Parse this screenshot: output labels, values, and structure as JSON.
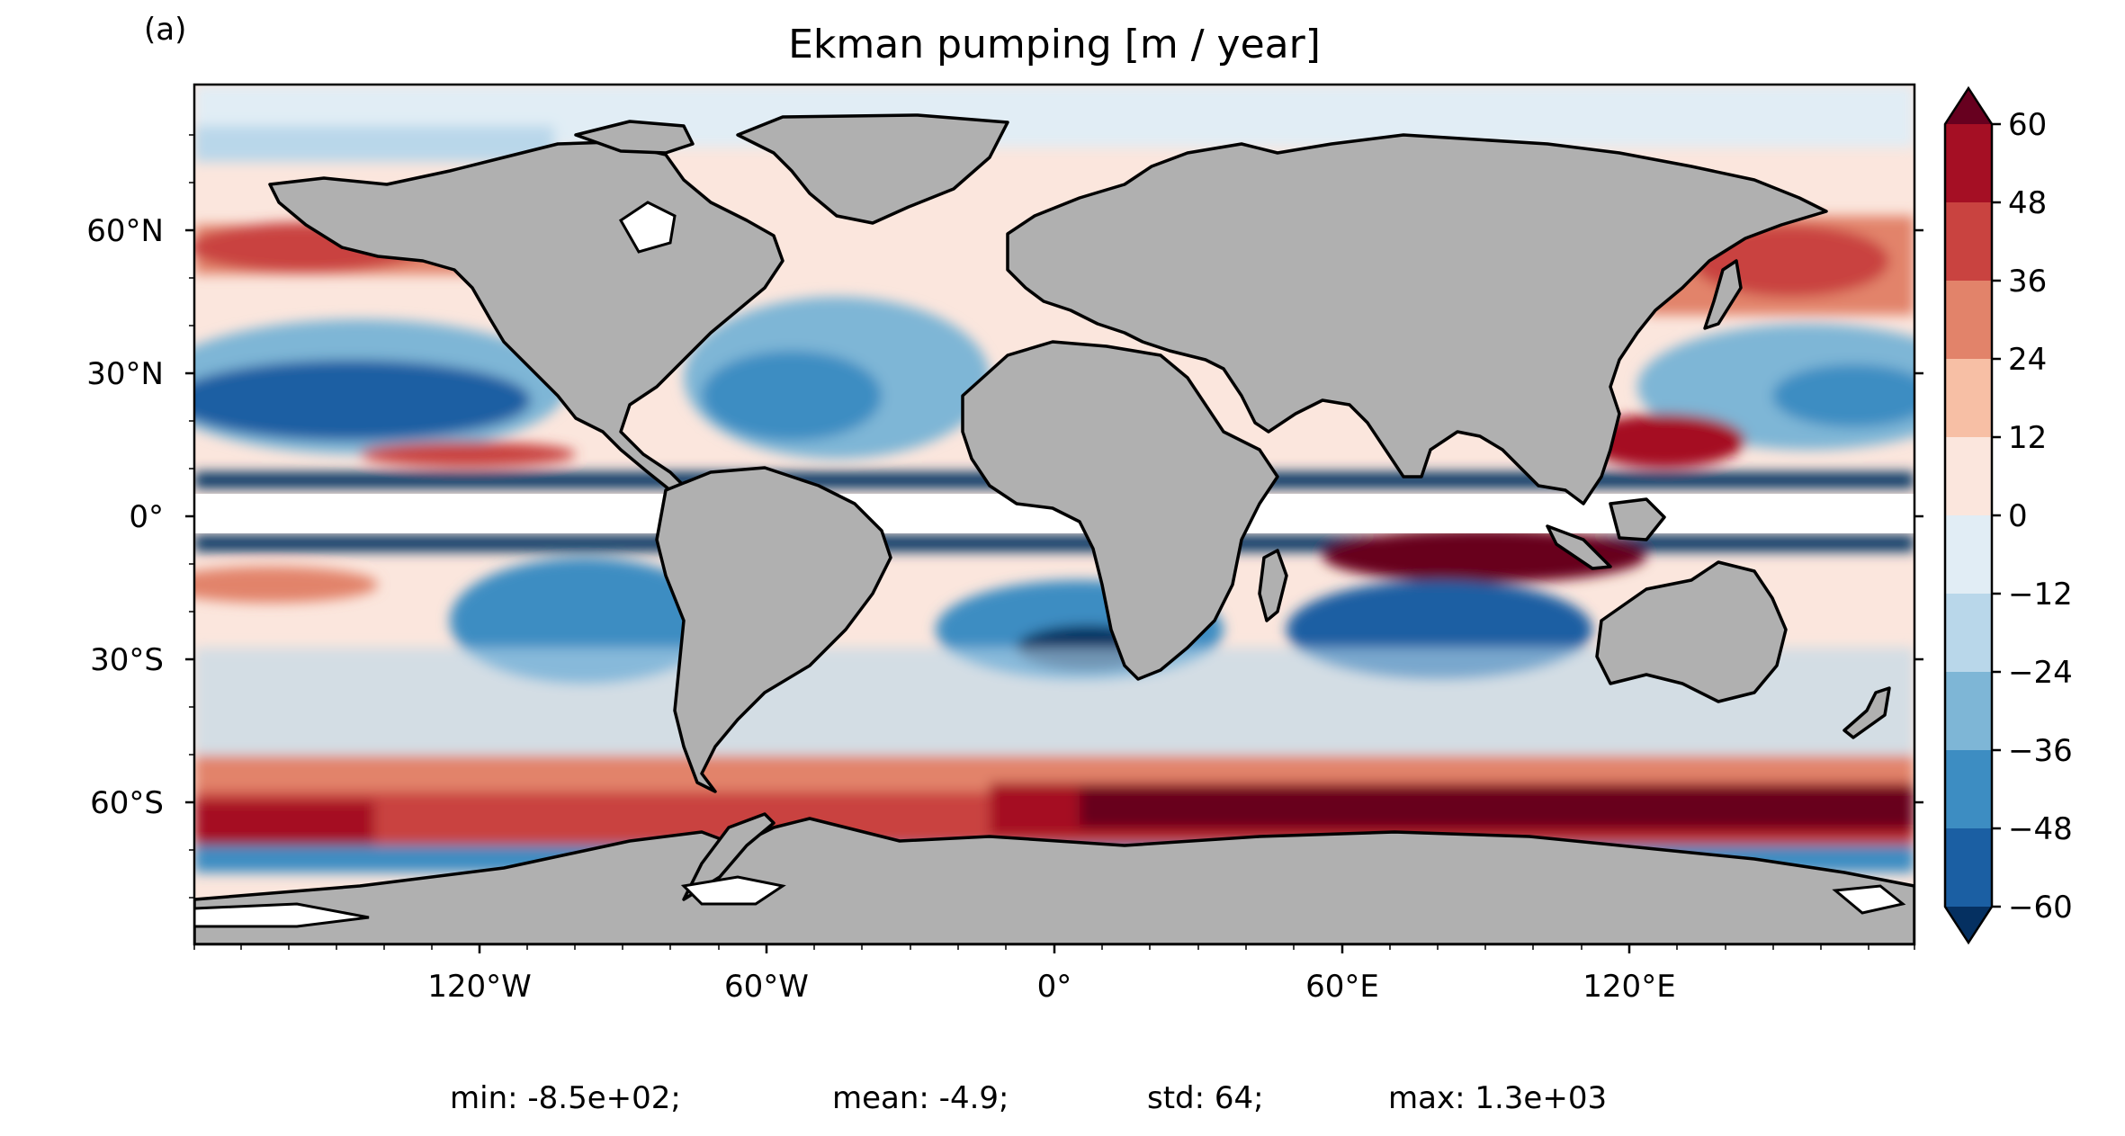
{
  "panel_label": "(a)",
  "title": "Ekman pumping [m / year]",
  "stats": {
    "min": "min: -8.5e+02;",
    "mean": "mean: -4.9;",
    "std": "std: 64;",
    "max": "max: 1.3e+03"
  },
  "colorbar": {
    "ticks": [
      "60",
      "48",
      "36",
      "24",
      "12",
      "0",
      "−12",
      "−24",
      "−36",
      "−48",
      "−60"
    ],
    "colors_top_to_bottom": [
      "#67001f",
      "#a50f24",
      "#c94340",
      "#e2836a",
      "#f7bfa5",
      "#fbe6dd",
      "#e1edf5",
      "#b9d7ea",
      "#7eb6d6",
      "#3d8dc2",
      "#1b5fa3",
      "#053061"
    ],
    "extend": "both"
  },
  "axes": {
    "y_ticks": [
      "60°N",
      "30°N",
      "0°",
      "30°S",
      "60°S"
    ],
    "x_ticks": [
      "120°W",
      "60°W",
      "0°",
      "60°E",
      "120°E"
    ]
  },
  "map": {
    "land_color": "#b0b0b0",
    "missing_color": "#ffffff",
    "coastline_color": "#000000"
  }
}
